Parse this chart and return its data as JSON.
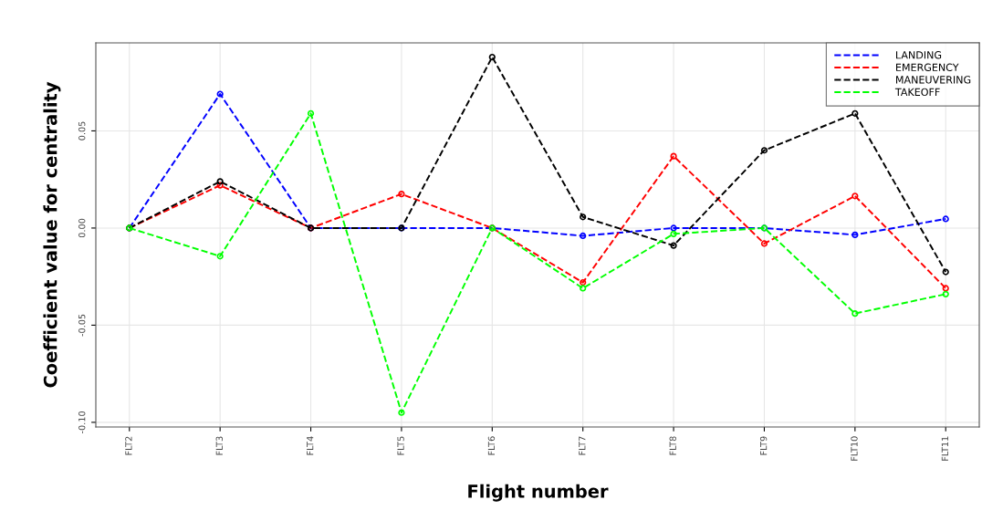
{
  "chart_data": {
    "type": "line",
    "xlabel": "Flight number",
    "ylabel": "Coefficient value for centrality",
    "categories": [
      "FLT2",
      "FLT3",
      "FLT4",
      "FLT5",
      "FLT6",
      "FLT7",
      "FLT8",
      "FLT9",
      "FLT10",
      "FLT11"
    ],
    "series": [
      {
        "name": "LANDING",
        "color": "#0000ff",
        "values": [
          0,
          0.069,
          0,
          0,
          0,
          -0.004,
          0,
          0,
          -0.0035,
          0.0047
        ]
      },
      {
        "name": "EMERGENCY",
        "color": "#ff0000",
        "values": [
          0,
          0.022,
          0,
          0.0175,
          0,
          -0.028,
          0.037,
          -0.008,
          0.0165,
          -0.031
        ]
      },
      {
        "name": "MANEUVERING",
        "color": "#000000",
        "values": [
          0,
          0.024,
          0,
          0,
          0.088,
          0.0057,
          -0.009,
          0.04,
          0.059,
          -0.0226
        ]
      },
      {
        "name": "TAKEOFF",
        "color": "#00ff00",
        "values": [
          0,
          -0.0145,
          0.059,
          -0.095,
          0,
          -0.031,
          -0.003,
          0,
          -0.044,
          -0.034
        ]
      }
    ],
    "ylim": [
      -0.1024,
      0.0953
    ],
    "yticks": [
      {
        "value": -0.1,
        "label": "-0.10"
      },
      {
        "value": -0.05,
        "label": "-0.05"
      },
      {
        "value": 0,
        "label": "0.00"
      },
      {
        "value": 0.05,
        "label": "0.05"
      }
    ],
    "grid": true,
    "legend": "top right",
    "marker": "circle",
    "line_style": "dashed"
  }
}
